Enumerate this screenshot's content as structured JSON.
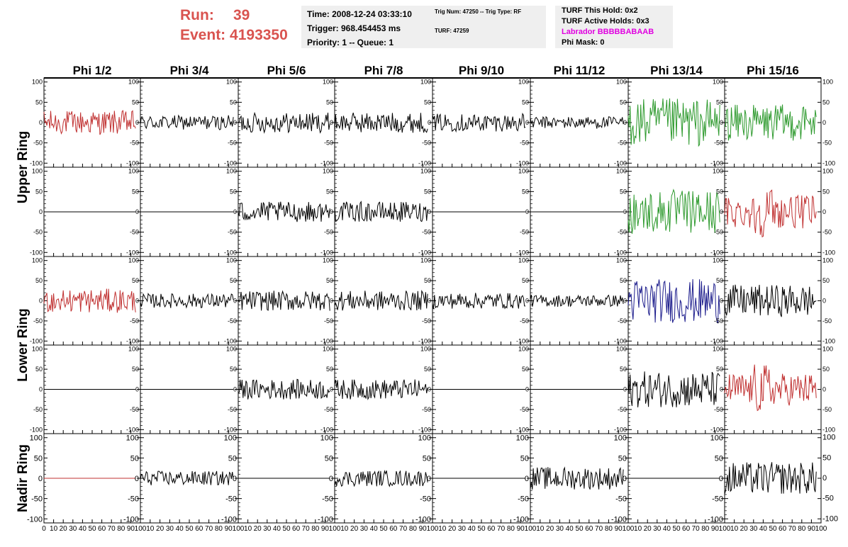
{
  "header": {
    "run_label": "Run:",
    "run_value": "39",
    "event_label": "Event:",
    "event_value": "4193350",
    "time": "Time: 2008-12-24 03:33:10",
    "trigger": "Trigger: 968.454453 ms",
    "priority": "Priority: 1 -- Queue: 1",
    "trig_num": "Trig Num: 47250 -- Trig Type: RF",
    "turf": "TURF: 47259",
    "turf_hold": "TURF This Hold: 0x2",
    "turf_active": "TURF Active Holds: 0x3",
    "labrador": "Labrador BBBBBABAAB",
    "phi_mask": "Phi Mask: 0"
  },
  "columns": [
    "Phi 1/2",
    "Phi 3/4",
    "Phi 5/6",
    "Phi 7/8",
    "Phi 9/10",
    "Phi 11/12",
    "Phi 13/14",
    "Phi 15/16"
  ],
  "row_groups": [
    "Upper Ring",
    "Lower Ring",
    "Nadir Ring"
  ],
  "colors": {
    "red": "#c03030",
    "green": "#2e9a2e",
    "blue": "#1c1c8c",
    "black": "#000000",
    "run_text": "#d9534f",
    "labrador_text": "#e000e0"
  },
  "chart_data": {
    "type": "line",
    "title": "",
    "xlabel": "",
    "ylabel": "",
    "xlim": [
      0,
      100
    ],
    "ylim": [
      -110,
      110
    ],
    "x_ticks": [
      0,
      10,
      20,
      30,
      40,
      50,
      60,
      70,
      80,
      90,
      100
    ],
    "y_ticks": [
      -100,
      -50,
      0,
      50,
      100
    ],
    "grid": false,
    "trace_x_range": [
      0,
      95
    ],
    "panels": [
      [
        "red:30",
        "black:18",
        "black:25",
        "black:25",
        "black:22",
        "black:15",
        "green:60",
        "green:45"
      ],
      [
        "black:0",
        "black:0",
        "black:25",
        "black:25",
        "black:0",
        "black:0",
        "green:55",
        "red:45"
      ],
      [
        "red:30",
        "black:18",
        "black:25",
        "black:25",
        "black:20",
        "black:15",
        "blue:55",
        "black:40"
      ],
      [
        "black:0",
        "black:0",
        "black:25",
        "black:25",
        "black:0",
        "black:0",
        "black:45",
        "red:45"
      ],
      [
        "red:0",
        "black:18",
        "black:0",
        "black:20",
        "black:0",
        "black:28",
        "black:0",
        "black:40"
      ]
    ]
  }
}
